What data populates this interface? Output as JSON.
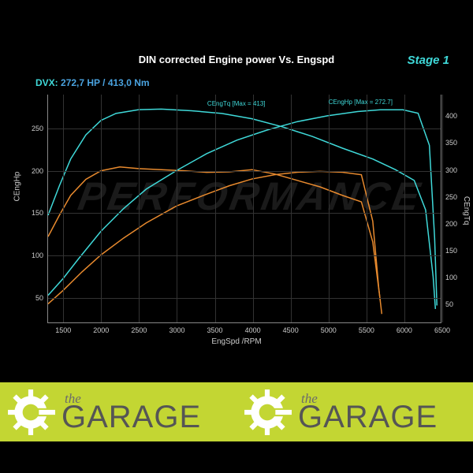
{
  "chart": {
    "title": "DIN corrected Engine power Vs. Engspd",
    "stage_label": "Stage 1",
    "dvx_key": "DVX:",
    "dvx_val": "272,7 HP / 413,0 Nm",
    "xlabel": "EngSpd /RPM",
    "ylabel_left": "CEngHp",
    "ylabel_right": "CEngTq",
    "title_fontsize": 13,
    "tick_fontsize": 9,
    "label_fontsize": 10,
    "background_color": "#000000",
    "grid_color": "#333333",
    "axis_color": "#888888",
    "text_color": "#cccccc",
    "accent_color": "#3fd9d9",
    "stock_color": "#e88a2e",
    "tuned_color": "#3fd9d9",
    "line_width": 1.5,
    "xlim": [
      1300,
      6500
    ],
    "xticks": [
      1500,
      2000,
      2500,
      3000,
      3500,
      4000,
      4500,
      5000,
      5500,
      6000,
      6500
    ],
    "ylim_left": [
      20,
      290
    ],
    "yticks_left": [
      50,
      100,
      150,
      200,
      250
    ],
    "ylim_right": [
      15,
      440
    ],
    "yticks_right": [
      50,
      100,
      150,
      200,
      250,
      300,
      350,
      400
    ],
    "marker_tq": "CEngTq [Max = 413]",
    "marker_hp": "CEngHp [Max = 272.7]",
    "watermark": "PERFORMANCE",
    "series": {
      "hp_tuned": {
        "color": "#3fd9d9",
        "axis": "left",
        "points": [
          [
            1300,
            52
          ],
          [
            1500,
            72
          ],
          [
            1700,
            95
          ],
          [
            2000,
            128
          ],
          [
            2300,
            155
          ],
          [
            2600,
            178
          ],
          [
            3000,
            200
          ],
          [
            3400,
            220
          ],
          [
            3800,
            236
          ],
          [
            4200,
            248
          ],
          [
            4600,
            258
          ],
          [
            5000,
            265
          ],
          [
            5400,
            270
          ],
          [
            5700,
            272
          ],
          [
            6000,
            272
          ],
          [
            6200,
            268
          ],
          [
            6350,
            230
          ],
          [
            6420,
            120
          ],
          [
            6450,
            40
          ]
        ]
      },
      "tq_tuned": {
        "color": "#3fd9d9",
        "axis": "right",
        "points": [
          [
            1300,
            215
          ],
          [
            1450,
            270
          ],
          [
            1600,
            320
          ],
          [
            1800,
            365
          ],
          [
            2000,
            392
          ],
          [
            2200,
            405
          ],
          [
            2500,
            412
          ],
          [
            2800,
            413
          ],
          [
            3200,
            410
          ],
          [
            3600,
            405
          ],
          [
            4000,
            395
          ],
          [
            4400,
            380
          ],
          [
            4800,
            362
          ],
          [
            5200,
            340
          ],
          [
            5600,
            320
          ],
          [
            5900,
            300
          ],
          [
            6150,
            280
          ],
          [
            6300,
            225
          ],
          [
            6400,
            100
          ],
          [
            6430,
            40
          ]
        ]
      },
      "hp_stock": {
        "color": "#e88a2e",
        "axis": "left",
        "points": [
          [
            1300,
            42
          ],
          [
            1500,
            58
          ],
          [
            1750,
            80
          ],
          [
            2000,
            100
          ],
          [
            2300,
            120
          ],
          [
            2600,
            138
          ],
          [
            3000,
            158
          ],
          [
            3400,
            172
          ],
          [
            3700,
            182
          ],
          [
            4000,
            190
          ],
          [
            4300,
            195
          ],
          [
            4600,
            198
          ],
          [
            4900,
            199
          ],
          [
            5200,
            198
          ],
          [
            5450,
            195
          ],
          [
            5600,
            140
          ],
          [
            5680,
            60
          ],
          [
            5720,
            30
          ]
        ]
      },
      "tq_stock": {
        "color": "#e88a2e",
        "axis": "right",
        "points": [
          [
            1300,
            175
          ],
          [
            1450,
            215
          ],
          [
            1600,
            252
          ],
          [
            1800,
            282
          ],
          [
            2000,
            298
          ],
          [
            2250,
            305
          ],
          [
            2500,
            302
          ],
          [
            2800,
            300
          ],
          [
            3100,
            298
          ],
          [
            3400,
            295
          ],
          [
            3700,
            296
          ],
          [
            4000,
            300
          ],
          [
            4300,
            292
          ],
          [
            4600,
            280
          ],
          [
            4900,
            268
          ],
          [
            5200,
            252
          ],
          [
            5450,
            240
          ],
          [
            5600,
            165
          ],
          [
            5700,
            55
          ]
        ]
      }
    }
  },
  "footer": {
    "bg_color": "#c3d633",
    "logo_the": "the",
    "logo_main": "GARAGE",
    "gear_color": "#ffffff",
    "text_color_the": "#6b6b6b",
    "text_color_main": "#555555"
  }
}
